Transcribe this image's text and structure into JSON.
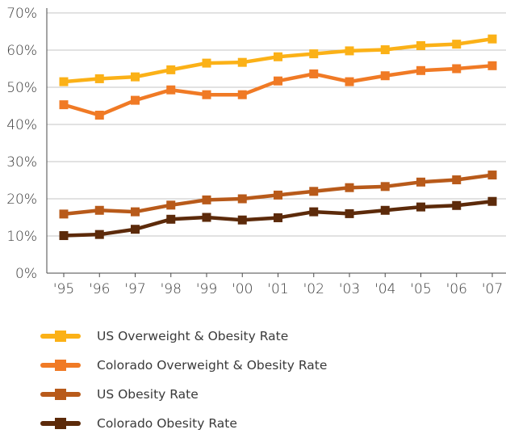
{
  "chart_data": {
    "type": "line",
    "categories": [
      "'95",
      "'96",
      "'97",
      "'98",
      "'99",
      "'00",
      "'01",
      "'02",
      "'03",
      "'04",
      "'05",
      "'06",
      "'07"
    ],
    "ylim": [
      0,
      70
    ],
    "yticks": [
      "0%",
      "10%",
      "20%",
      "30%",
      "40%",
      "50%",
      "60%",
      "70%"
    ],
    "grid": true,
    "legend_position": "bottom",
    "series": [
      {
        "name": "US Overweight & Obesity Rate",
        "color": "#FBB117",
        "values": [
          51.5,
          52.3,
          52.8,
          54.7,
          56.5,
          56.7,
          58.2,
          59.0,
          59.8,
          60.1,
          61.2,
          61.6,
          63.0
        ]
      },
      {
        "name": "Colorado Overweight & Obesity Rate",
        "color": "#F07A25",
        "values": [
          45.3,
          42.5,
          46.5,
          49.3,
          48.0,
          48.0,
          51.7,
          53.6,
          51.5,
          53.1,
          54.5,
          55.0,
          55.8
        ]
      },
      {
        "name": "US Obesity Rate",
        "color": "#B85A1A",
        "values": [
          15.9,
          16.9,
          16.5,
          18.3,
          19.7,
          20.0,
          21.0,
          22.0,
          23.0,
          23.3,
          24.5,
          25.1,
          26.4
        ]
      },
      {
        "name": "Colorado Obesity Rate",
        "color": "#5C2A0A",
        "values": [
          10.1,
          10.4,
          11.8,
          14.5,
          15.0,
          14.3,
          14.9,
          16.5,
          16.0,
          16.9,
          17.8,
          18.2,
          19.3
        ]
      }
    ]
  }
}
